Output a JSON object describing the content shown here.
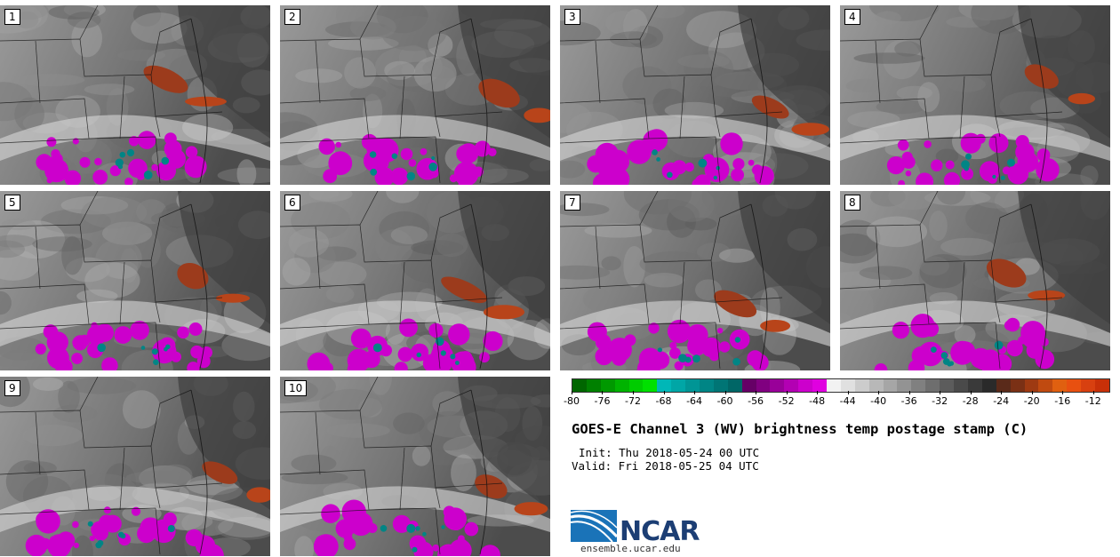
{
  "panels": [
    {
      "label": "1"
    },
    {
      "label": "2"
    },
    {
      "label": "3"
    },
    {
      "label": "4"
    },
    {
      "label": "5"
    },
    {
      "label": "6"
    },
    {
      "label": "7"
    },
    {
      "label": "8"
    },
    {
      "label": "9"
    },
    {
      "label": "10"
    }
  ],
  "colorbar": {
    "colors": [
      "#006600",
      "#008000",
      "#009900",
      "#00b300",
      "#00cc00",
      "#00e000",
      "#00b7b7",
      "#00a6a6",
      "#009595",
      "#008585",
      "#007575",
      "#006666",
      "#660066",
      "#800080",
      "#990099",
      "#b300b3",
      "#cc00cc",
      "#e000e0",
      "#f2f2f2",
      "#e0e0e0",
      "#cccccc",
      "#b8b8b8",
      "#a6a6a6",
      "#939393",
      "#808080",
      "#6e6e6e",
      "#5c5c5c",
      "#4a4a4a",
      "#3a3a3a",
      "#2a2a2a",
      "#5a2a1a",
      "#7a3015",
      "#9e3a12",
      "#c04a10",
      "#e06010",
      "#e85010",
      "#d84010",
      "#c83008"
    ],
    "ticks": [
      "-80",
      "-76",
      "-72",
      "-68",
      "-64",
      "-60",
      "-56",
      "-52",
      "-48",
      "-44",
      "-40",
      "-36",
      "-32",
      "-28",
      "-24",
      "-20",
      "-16",
      "-12"
    ],
    "min": -80,
    "max": -10
  },
  "title": "GOES-E Channel 3 (WV) brightness temp postage stamp (C)",
  "init": "Init: Thu 2018-05-24 00 UTC",
  "valid": "Valid: Fri 2018-05-25 04 UTC",
  "logo": {
    "text": "NCAR",
    "url": "ensemble.ucar.edu"
  }
}
